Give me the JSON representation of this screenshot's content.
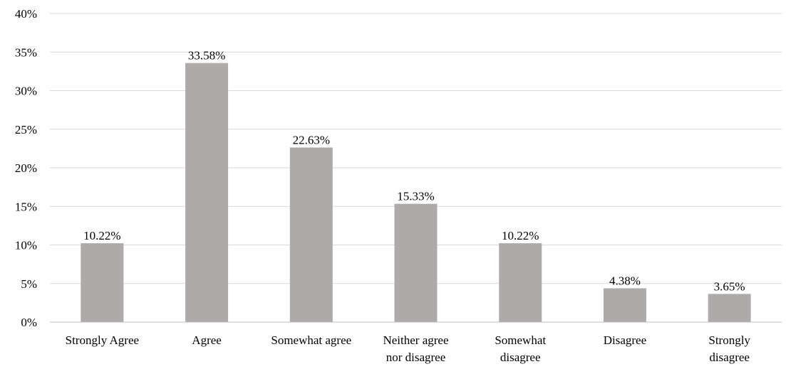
{
  "chart_data": {
    "type": "bar",
    "title": "",
    "xlabel": "",
    "ylabel": "",
    "ylim": [
      0,
      40
    ],
    "y_tick_step": 5,
    "y_tick_format": "percent",
    "grid": true,
    "legend": "none",
    "bar_color": "#aeaaaa",
    "categories": [
      [
        "Strongly Agree"
      ],
      [
        "Agree"
      ],
      [
        "Somewhat agree"
      ],
      [
        "Neither agree",
        "nor disagree"
      ],
      [
        "Somewhat",
        "disagree"
      ],
      [
        "Disagree"
      ],
      [
        "Strongly",
        "disagree"
      ]
    ],
    "values": [
      10.22,
      33.58,
      22.63,
      15.33,
      10.22,
      4.38,
      3.65
    ],
    "data_labels": [
      "10.22%",
      "33.58%",
      "22.63%",
      "15.33%",
      "10.22%",
      "4.38%",
      "3.65%"
    ],
    "y_tick_labels": [
      "0%",
      "5%",
      "10%",
      "15%",
      "20%",
      "25%",
      "30%",
      "35%",
      "40%"
    ]
  }
}
